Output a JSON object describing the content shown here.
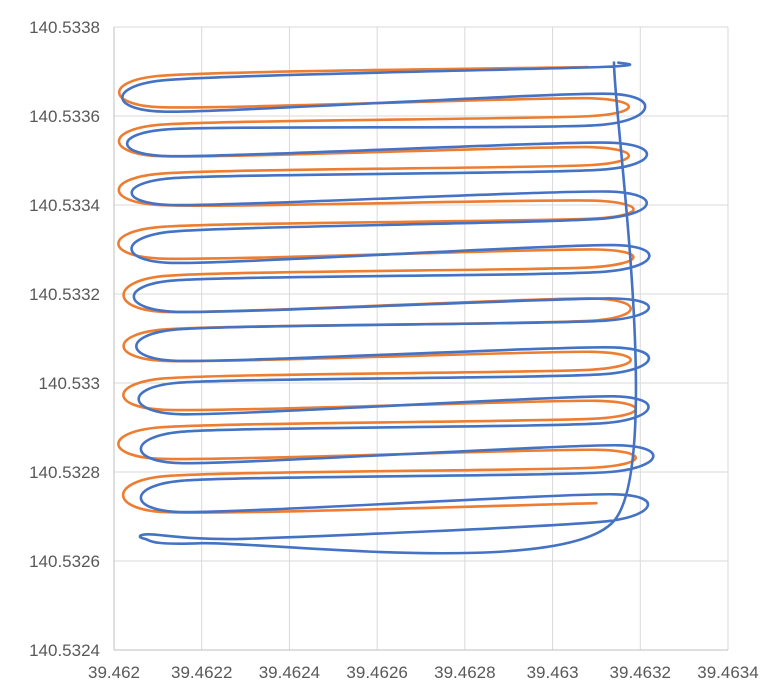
{
  "chart_data": {
    "type": "scatter",
    "style": "smooth lines, no markers",
    "title": "",
    "xlabel": "",
    "ylabel": "",
    "xlim": [
      39.462,
      39.4634
    ],
    "ylim": [
      140.5324,
      140.5338
    ],
    "x_ticks": [
      "39.462",
      "39.4622",
      "39.4624",
      "39.4626",
      "39.4628",
      "39.463",
      "39.4632",
      "39.4634"
    ],
    "y_ticks": [
      "140.5324",
      "140.5326",
      "140.5328",
      "140.533",
      "140.5332",
      "140.5334",
      "140.5336",
      "140.5338"
    ],
    "grid": true,
    "legend": "none",
    "series": [
      {
        "color": "#ED7D31",
        "description": "planned serpentine survey path",
        "points": [
          [
            39.46308,
            140.53371
          ],
          [
            39.4621,
            140.53369
          ],
          [
            39.4621,
            140.53362
          ],
          [
            39.46308,
            140.53364
          ],
          [
            39.46309,
            140.5336
          ],
          [
            39.4621,
            140.53358
          ],
          [
            39.4621,
            140.53351
          ],
          [
            39.46308,
            140.53353
          ],
          [
            39.46309,
            140.53349
          ],
          [
            39.4621,
            140.53347
          ],
          [
            39.4621,
            140.5334
          ],
          [
            39.46309,
            140.53341
          ],
          [
            39.4631,
            140.53337
          ],
          [
            39.4621,
            140.53335
          ],
          [
            39.4621,
            140.53328
          ],
          [
            39.4631,
            140.5333
          ],
          [
            39.46309,
            140.53326
          ],
          [
            39.46211,
            140.53324
          ],
          [
            39.46211,
            140.53316
          ],
          [
            39.46309,
            140.53319
          ],
          [
            39.46309,
            140.53314
          ],
          [
            39.46211,
            140.53312
          ],
          [
            39.46211,
            140.53305
          ],
          [
            39.46309,
            140.53307
          ],
          [
            39.46309,
            140.53303
          ],
          [
            39.46211,
            140.53301
          ],
          [
            39.46211,
            140.53294
          ],
          [
            39.4631,
            140.53296
          ],
          [
            39.4631,
            140.53292
          ],
          [
            39.4621,
            140.5329
          ],
          [
            39.4621,
            140.53283
          ],
          [
            39.4631,
            140.53285
          ],
          [
            39.4631,
            140.53281
          ],
          [
            39.46211,
            140.53279
          ],
          [
            39.46211,
            140.53271
          ],
          [
            39.4631,
            140.53273
          ]
        ]
      },
      {
        "color": "#4472C4",
        "description": "actual flight track",
        "points": [
          [
            39.46315,
            140.53372
          ],
          [
            39.46311,
            140.53371
          ],
          [
            39.46211,
            140.53368
          ],
          [
            39.46211,
            140.53361
          ],
          [
            39.46313,
            140.53365
          ],
          [
            39.46311,
            140.53358
          ],
          [
            39.46212,
            140.53357
          ],
          [
            39.46212,
            140.53351
          ],
          [
            39.46313,
            140.53354
          ],
          [
            39.46312,
            140.53348
          ],
          [
            39.46213,
            140.53346
          ],
          [
            39.46213,
            140.5334
          ],
          [
            39.46313,
            140.53343
          ],
          [
            39.46312,
            140.53337
          ],
          [
            39.46213,
            140.53334
          ],
          [
            39.46213,
            140.53327
          ],
          [
            39.46314,
            140.53331
          ],
          [
            39.46312,
            140.53325
          ],
          [
            39.46213,
            140.53323
          ],
          [
            39.46214,
            140.53316
          ],
          [
            39.46314,
            140.53319
          ],
          [
            39.46312,
            140.53314
          ],
          [
            39.46214,
            140.53312
          ],
          [
            39.46214,
            140.53305
          ],
          [
            39.46314,
            140.53308
          ],
          [
            39.46312,
            140.53302
          ],
          [
            39.46214,
            140.533
          ],
          [
            39.46215,
            140.53293
          ],
          [
            39.46314,
            140.53297
          ],
          [
            39.46312,
            140.53291
          ],
          [
            39.46215,
            140.53289
          ],
          [
            39.46215,
            140.53282
          ],
          [
            39.46315,
            140.53286
          ],
          [
            39.46313,
            140.5328
          ],
          [
            39.46215,
            140.53278
          ],
          [
            39.46215,
            140.53271
          ],
          [
            39.46314,
            140.53275
          ],
          [
            39.46313,
            140.53269
          ],
          [
            39.4623,
            140.53265
          ],
          [
            39.46208,
            140.53266
          ],
          [
            39.46207,
            140.53265
          ],
          [
            39.4622,
            140.53264
          ],
          [
            39.46314,
            140.53269
          ],
          [
            39.46314,
            140.53372
          ]
        ]
      }
    ]
  }
}
